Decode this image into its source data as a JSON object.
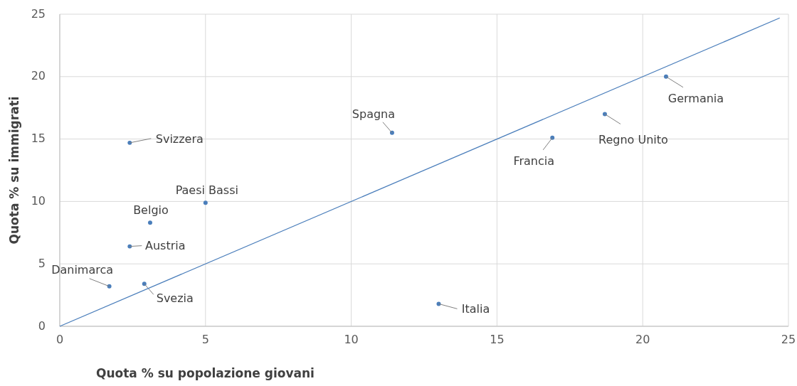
{
  "chart_data": {
    "type": "scatter",
    "xlabel": "Quota % su popolazione giovani",
    "ylabel": "Quota % su immigrati",
    "xlim": [
      0,
      25
    ],
    "xticks": [
      0,
      5,
      10,
      15,
      20,
      25
    ],
    "ylim": [
      0,
      25
    ],
    "yticks": [
      0,
      5,
      10,
      15,
      20,
      25
    ],
    "grid": true,
    "marker": "circle",
    "series": [
      {
        "name": "Danimarca",
        "color": "#4a7ebb",
        "x": [
          1.7
        ],
        "values": [
          3.2
        ]
      },
      {
        "name": "Svezia",
        "color": "#4a7ebb",
        "x": [
          2.9
        ],
        "values": [
          3.4
        ]
      },
      {
        "name": "Austria",
        "color": "#4a7ebb",
        "x": [
          2.4
        ],
        "values": [
          6.4
        ]
      },
      {
        "name": "Belgio",
        "color": "#4a7ebb",
        "x": [
          3.1
        ],
        "values": [
          8.3
        ]
      },
      {
        "name": "Paesi Bassi",
        "color": "#4a7ebb",
        "x": [
          5.0
        ],
        "values": [
          9.9
        ]
      },
      {
        "name": "Svizzera",
        "color": "#4a7ebb",
        "x": [
          2.4
        ],
        "values": [
          14.7
        ]
      },
      {
        "name": "Spagna",
        "color": "#4a7ebb",
        "x": [
          11.4
        ],
        "values": [
          15.5
        ]
      },
      {
        "name": "Italia",
        "color": "#4a7ebb",
        "x": [
          13.0
        ],
        "values": [
          1.8
        ]
      },
      {
        "name": "Francia",
        "color": "#4a7ebb",
        "x": [
          16.9
        ],
        "values": [
          15.1
        ]
      },
      {
        "name": "Regno Unito",
        "color": "#4a7ebb",
        "x": [
          18.7
        ],
        "values": [
          17.0
        ]
      },
      {
        "name": "Germania",
        "color": "#4a7ebb",
        "x": [
          20.8
        ],
        "values": [
          20.0
        ]
      },
      {
        "type": "line",
        "color": "#4a7ebb",
        "x": [
          0,
          24.7
        ],
        "values": [
          0,
          24.7
        ],
        "marker": "none"
      }
    ]
  }
}
